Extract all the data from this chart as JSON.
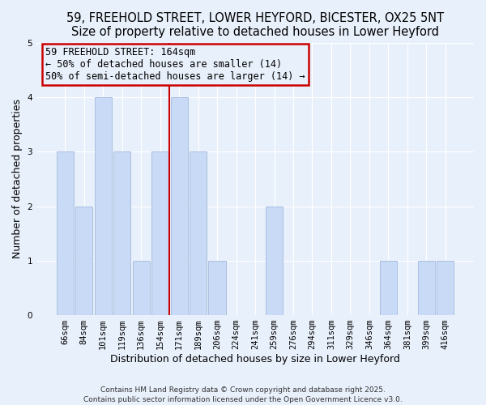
{
  "title": "59, FREEHOLD STREET, LOWER HEYFORD, BICESTER, OX25 5NT",
  "subtitle": "Size of property relative to detached houses in Lower Heyford",
  "xlabel": "Distribution of detached houses by size in Lower Heyford",
  "ylabel": "Number of detached properties",
  "bar_labels": [
    "66sqm",
    "84sqm",
    "101sqm",
    "119sqm",
    "136sqm",
    "154sqm",
    "171sqm",
    "189sqm",
    "206sqm",
    "224sqm",
    "241sqm",
    "259sqm",
    "276sqm",
    "294sqm",
    "311sqm",
    "329sqm",
    "346sqm",
    "364sqm",
    "381sqm",
    "399sqm",
    "416sqm"
  ],
  "bar_values": [
    3,
    2,
    4,
    3,
    1,
    3,
    4,
    3,
    1,
    0,
    0,
    2,
    0,
    0,
    0,
    0,
    0,
    1,
    0,
    1,
    1
  ],
  "bar_color": "#c8daf5",
  "bar_edgecolor": "#aabfe0",
  "vline_index": 6,
  "vline_color": "#cc0000",
  "box_edgecolor": "#cc0000",
  "annotation_title": "59 FREEHOLD STREET: 164sqm",
  "annotation_line1": "← 50% of detached houses are smaller (14)",
  "annotation_line2": "50% of semi-detached houses are larger (14) →",
  "ylim": [
    0,
    5
  ],
  "yticks": [
    0,
    1,
    2,
    3,
    4,
    5
  ],
  "footer1": "Contains HM Land Registry data © Crown copyright and database right 2025.",
  "footer2": "Contains public sector information licensed under the Open Government Licence v3.0.",
  "background_color": "#e8f0fb",
  "grid_color": "#ffffff",
  "title_fontsize": 10.5,
  "xlabel_fontsize": 9,
  "ylabel_fontsize": 9,
  "tick_fontsize": 7.5,
  "footer_fontsize": 6.5,
  "annotation_fontsize": 8.5
}
